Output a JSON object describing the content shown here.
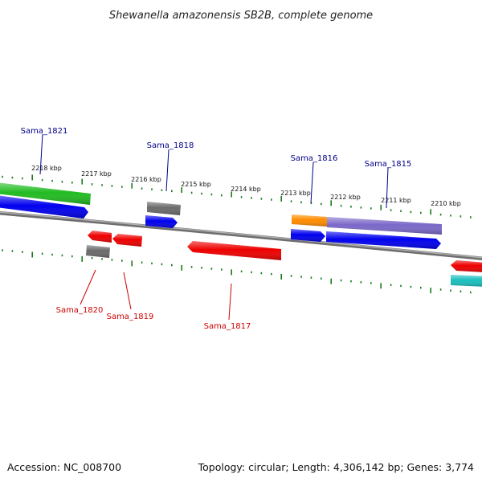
{
  "title": "Shewanella amazonensis SB2B, complete genome",
  "footer": {
    "accession": "Accession: NC_008700",
    "summary": "Topology: circular; Length: 4,306,142 bp; Genes: 3,774"
  },
  "colors": {
    "backbone": "#808080",
    "tick": "#1a7a1a",
    "label_forward": "#00008b",
    "label_reverse": "#cc0000",
    "forward_cds": "#0000ff",
    "reverse_cds": "#ff0000",
    "gene": "#707070",
    "rRNA": "#ff8c00",
    "tRNA_like": "#7b68c8",
    "top_band": "#22bb22",
    "cyan_band": "#1abfbf"
  },
  "tick_labels": [
    "2218 kbp",
    "2217 kbp",
    "2216 kbp",
    "2215 kbp",
    "2214 kbp",
    "2213 kbp",
    "2212 kbp",
    "2211 kbp",
    "2210 kbp"
  ],
  "gene_labels": [
    {
      "text": "Sama_1821",
      "strand": "forward"
    },
    {
      "text": "Sama_1818",
      "strand": "forward"
    },
    {
      "text": "Sama_1816",
      "strand": "forward"
    },
    {
      "text": "Sama_1815",
      "strand": "forward"
    },
    {
      "text": "Sama_1820",
      "strand": "reverse"
    },
    {
      "text": "Sama_1819",
      "strand": "reverse"
    },
    {
      "text": "Sama_1817",
      "strand": "reverse"
    }
  ]
}
